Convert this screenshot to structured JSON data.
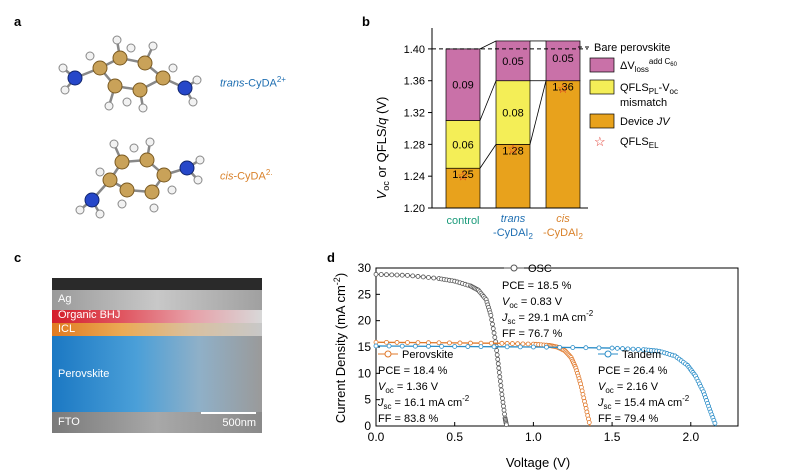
{
  "panel_labels": {
    "a": "a",
    "b": "b",
    "c": "c",
    "d": "d"
  },
  "panel_a": {
    "trans_prefix": "trans",
    "trans_rest": "-CyDA",
    "trans_sup": "2+",
    "cis_prefix": "cis",
    "cis_rest": "-CyDA",
    "cis_sup": "2.",
    "trans_color": "#1f6fb2",
    "cis_color": "#d9822b"
  },
  "panel_c": {
    "layers": [
      "Ag",
      "Organic BHJ",
      "ICL",
      "Perovskite",
      "FTO"
    ],
    "scale_bar": "500nm"
  },
  "chart_data": [
    {
      "type": "bar",
      "panel": "b",
      "categories": [
        "control",
        "trans -CyDAI2",
        "cis -CyDAI2"
      ],
      "category_tick_parts": [
        [
          "control"
        ],
        [
          "trans",
          "-CyDAI",
          "2"
        ],
        [
          "cis",
          "-CyDAI",
          "2"
        ]
      ],
      "ylabel": "V_oc or QFLS/q (V)",
      "ylim": [
        1.2,
        1.42
      ],
      "yticks": [
        "1.20",
        "1.24",
        "1.28",
        "1.32",
        "1.36",
        "1.40"
      ],
      "reference_line": {
        "y": 1.4,
        "label": "Bare perovskite"
      },
      "series": [
        {
          "name": "Device JV",
          "color": "#e8a21c",
          "values": [
            1.25,
            1.28,
            1.36
          ]
        },
        {
          "name": "QFLS_PL-V_oc mismatch",
          "color": "#f4ee57",
          "values": [
            0.06,
            0.08,
            0.0
          ]
        },
        {
          "name": "ΔV_loss add C60",
          "color": "#c971a8",
          "values": [
            0.09,
            0.05,
            0.05
          ]
        }
      ],
      "bar_labels": [
        [
          "1.25",
          "0.06",
          "0.09"
        ],
        [
          "1.28",
          "0.08",
          "0.05"
        ],
        [
          "1.36",
          "",
          "0.05"
        ]
      ],
      "qfls_el": [
        1.241,
        1.275,
        1.351
      ],
      "legend": {
        "bare": "Bare perovskite",
        "loss_a": "ΔV",
        "loss_sub": "loss",
        "loss_sup": "add C",
        "loss_sup2": "60",
        "mismatch_a": "QFLS",
        "mismatch_sub": "PL",
        "mismatch_b": "-V",
        "mismatch_sub2": "oc",
        "mismatch_c": "mismatch",
        "device_a": "Device ",
        "device_b": "JV",
        "qfls_el_a": "QFLS",
        "qfls_el_sub": "EL"
      },
      "tick_colors": [
        "#1a9a7a",
        "#1f6fb2",
        "#d9822b"
      ]
    },
    {
      "type": "line",
      "panel": "d",
      "xlabel": "Voltage (V)",
      "ylabel": "Current Density (mA cm⁻²)",
      "xlim": [
        0,
        2.3
      ],
      "ylim": [
        0,
        30
      ],
      "xticks": [
        "0.0",
        "0.5",
        "1.0",
        "1.5",
        "2.0"
      ],
      "yticks": [
        "0",
        "5",
        "10",
        "15",
        "20",
        "25",
        "30"
      ],
      "series": [
        {
          "name": "OSC",
          "color": "#555555",
          "jsc": 29.1,
          "voc": 0.83,
          "ff": 76.7,
          "x": [
            0,
            0.2,
            0.4,
            0.5,
            0.6,
            0.65,
            0.7,
            0.73,
            0.76,
            0.78,
            0.8,
            0.82,
            0.83
          ],
          "y": [
            28.8,
            28.6,
            28.0,
            27.5,
            26.6,
            25.8,
            24.0,
            21.0,
            16.0,
            11.0,
            6.0,
            1.5,
            0
          ]
        },
        {
          "name": "Perovskite",
          "color": "#e0782a",
          "jsc": 16.1,
          "voc": 1.36,
          "ff": 83.8,
          "x": [
            0,
            0.4,
            0.8,
            1.0,
            1.1,
            1.15,
            1.2,
            1.24,
            1.27,
            1.3,
            1.33,
            1.36
          ],
          "y": [
            15.9,
            15.8,
            15.7,
            15.55,
            15.3,
            15.0,
            14.3,
            13.0,
            11.0,
            8.0,
            4.0,
            0
          ]
        },
        {
          "name": "Tandem",
          "color": "#2a8dc8",
          "jsc": 15.4,
          "voc": 2.16,
          "ff": 79.4,
          "x": [
            0,
            0.5,
            1.0,
            1.5,
            1.7,
            1.8,
            1.9,
            1.98,
            2.03,
            2.08,
            2.12,
            2.16
          ],
          "y": [
            15.2,
            15.1,
            15.0,
            14.8,
            14.5,
            14.2,
            13.3,
            11.5,
            9.5,
            6.5,
            3.2,
            0
          ]
        }
      ],
      "annotations": {
        "osc": {
          "name": "OSC",
          "pce": "PCE = 18.5 %",
          "voc_val": " = 0.83 V",
          "jsc_val": " = 29.1 mA cm",
          "ff": "FF = 76.7 %"
        },
        "pvk": {
          "name": "Perovskite",
          "pce": "PCE = 18.4 %",
          "voc_val": " = 1.36 V",
          "jsc_val": " = 16.1 mA cm",
          "ff": "FF = 83.8 %"
        },
        "tandem": {
          "name": "Tandem",
          "pce": "PCE = 26.4 %",
          "voc_val": " = 2.16 V",
          "jsc_val": " = 15.4 mA cm",
          "ff": "FF = 79.4 %"
        },
        "voc_sym": "V",
        "voc_sub": "oc",
        "jsc_sym": "J",
        "jsc_sub": "sc",
        "sup": "-2"
      }
    }
  ]
}
